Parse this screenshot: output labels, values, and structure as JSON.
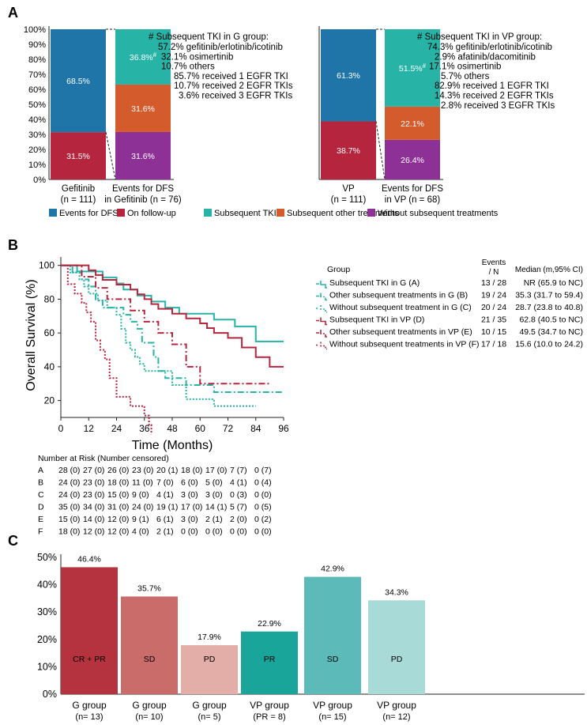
{
  "colors": {
    "blue": "#1f75a8",
    "red": "#b5253e",
    "teal": "#27b3a6",
    "orange": "#d45c2c",
    "purple": "#8e3197",
    "bar_g1": "#b5323f",
    "bar_g2": "#c96c6a",
    "bar_g3": "#e2aea7",
    "bar_v1": "#1aa59b",
    "bar_v2": "#5cbab8",
    "bar_v3": "#a8dad7"
  },
  "panel_a": {
    "label": "A",
    "chart_data": {
      "type": "bar",
      "stacked": true,
      "y_ticks": [
        "0%",
        "10%",
        "20%",
        "30%",
        "40%",
        "50%",
        "60%",
        "70%",
        "80%",
        "90%",
        "100%"
      ],
      "left": {
        "bars": [
          {
            "name": "Gefitinib",
            "sub": "(n = 111)",
            "segments": [
              {
                "key": "red",
                "value": 31.5,
                "label": "31.5%"
              },
              {
                "key": "blue",
                "value": 68.5,
                "label": "68.5%"
              }
            ]
          },
          {
            "name": "Events for DFS",
            "sub": "in Gefitinib (n = 76)",
            "segments": [
              {
                "key": "purple",
                "value": 31.6,
                "label": "31.6%"
              },
              {
                "key": "orange",
                "value": 31.6,
                "label": "31.6%"
              },
              {
                "key": "teal",
                "value": 36.8,
                "label": "36.8%",
                "sup": "#"
              }
            ]
          }
        ],
        "note": {
          "title": "# Subsequent TKI in G group:",
          "lines": [
            "57.2% gefitinib/erlotinib/icotinib",
            "32.1% osimertinib",
            "10.7% others",
            "85.7%  received 1 EGFR TKI",
            "10.7%  received 2 EGFR TKIs",
            "3.6%  received 3 EGFR TKIs"
          ]
        }
      },
      "right": {
        "bars": [
          {
            "name": "VP",
            "sub": "(n = 111)",
            "segments": [
              {
                "key": "red",
                "value": 38.7,
                "label": "38.7%"
              },
              {
                "key": "blue",
                "value": 61.3,
                "label": "61.3%"
              }
            ]
          },
          {
            "name": "Events for DFS",
            "sub": "in VP (n = 68)",
            "segments": [
              {
                "key": "purple",
                "value": 26.4,
                "label": "26.4%"
              },
              {
                "key": "orange",
                "value": 22.1,
                "label": "22.1%"
              },
              {
                "key": "teal",
                "value": 51.5,
                "label": "51.5%",
                "sup": "#"
              }
            ]
          }
        ],
        "note": {
          "title": "# Subsequent TKI in VP group:",
          "lines": [
            "74.3% gefitinib/erlotinib/icotinib",
            "2.9% afatinib/dacomitinib",
            "17.1% osimertinib",
            "5.7% others",
            "82.9% received 1 EGFR TKI",
            "14.3% received 2 EGFR TKIs",
            "2.8% received 3 EGFR TKIs"
          ]
        }
      },
      "legend": [
        {
          "key": "blue",
          "label": "Events for DFS"
        },
        {
          "key": "red",
          "label": "On follow-up"
        },
        {
          "key": "teal",
          "label": "Subsequent TKI"
        },
        {
          "key": "orange",
          "label": "Subsequent other treatments"
        },
        {
          "key": "purple",
          "label": "Without subsequent treatments"
        }
      ]
    }
  },
  "panel_b": {
    "label": "B",
    "chart_data": {
      "type": "line",
      "ylabel": "Overall Survival (%)",
      "xlabel": "Time (Months)",
      "xlim": [
        0,
        96
      ],
      "ylim": [
        10,
        105
      ],
      "x_ticks": [
        0,
        12,
        24,
        36,
        48,
        60,
        72,
        84,
        96
      ],
      "y_ticks": [
        20,
        40,
        60,
        80,
        100
      ],
      "table_header": {
        "group": "Group",
        "events": "Events",
        "n": "/ N",
        "median": "Median (m,95% CI)"
      },
      "series": [
        {
          "id": "A",
          "name": "Subsequent TKI in G (A)",
          "events": "13 / 28",
          "median": "NR (65.9 to NC)",
          "color": "#27b3a6",
          "dash": "solid",
          "x": [
            0,
            7,
            18,
            24,
            27,
            33,
            39,
            45,
            51,
            57,
            66,
            72,
            75,
            81,
            84,
            96
          ],
          "y": [
            100,
            96.4,
            92.9,
            89.3,
            85.7,
            82.1,
            78.6,
            75,
            71.4,
            71.4,
            67.9,
            67.9,
            63.9,
            63.9,
            55,
            55
          ]
        },
        {
          "id": "B",
          "name": "Other subsequent treatments in G (B)",
          "events": "19 / 24",
          "median": "35.3 (31.7 to 59.4)",
          "color": "#27b3a6",
          "dash": "dashdot",
          "x": [
            0,
            5,
            9,
            12,
            15,
            18,
            24,
            27,
            30,
            33,
            35,
            40,
            42,
            45,
            54,
            66,
            96
          ],
          "y": [
            100,
            95.8,
            91.7,
            87.5,
            79.2,
            75,
            75,
            70.8,
            66.7,
            62.5,
            54.2,
            45.8,
            37.5,
            33.3,
            29.2,
            25,
            25
          ]
        },
        {
          "id": "C",
          "name": "Without subsequent treatment in G (C)",
          "events": "20 / 24",
          "median": "28.7 (23.8 to 40.8)",
          "color": "#27b3a6",
          "dash": "dotted",
          "x": [
            0,
            4,
            8,
            10,
            12,
            16,
            20,
            24,
            26,
            28,
            30,
            32,
            34,
            36,
            42,
            48,
            54,
            66,
            84
          ],
          "y": [
            100,
            95.8,
            91.7,
            87.5,
            83.3,
            79.2,
            75,
            70.8,
            62.5,
            54.2,
            50,
            45.8,
            41.7,
            37.5,
            37.5,
            29.2,
            20.8,
            16.7,
            16.7
          ]
        },
        {
          "id": "D",
          "name": "Subsequent TKI in VP (D)",
          "events": "21 / 35",
          "median": "62.8 (40.5 to NC)",
          "color": "#b5253e",
          "dash": "solid",
          "x": [
            0,
            12,
            15,
            18,
            24,
            30,
            33,
            36,
            39,
            42,
            48,
            54,
            60,
            63,
            66,
            72,
            78,
            84,
            90,
            96
          ],
          "y": [
            100,
            97.1,
            94.3,
            91.4,
            88.6,
            85.7,
            82.9,
            80,
            77.1,
            74.3,
            71.4,
            68.6,
            65.7,
            62.9,
            60,
            57.1,
            51.4,
            45.7,
            40,
            40
          ]
        },
        {
          "id": "E",
          "name": "Other subsequent treatments in VP (E)",
          "events": "10 / 15",
          "median": "49.5 (34.7 to NC)",
          "color": "#b5253e",
          "dash": "dashdot",
          "x": [
            0,
            9,
            15,
            20,
            24,
            30,
            36,
            42,
            48,
            54,
            60,
            72,
            84,
            90
          ],
          "y": [
            100,
            93.3,
            86.7,
            80,
            80,
            73.3,
            66.7,
            60,
            53.3,
            40,
            30,
            30,
            30,
            30
          ]
        },
        {
          "id": "F",
          "name": "Without subsequent treatments in VP (F)",
          "events": "17 / 18",
          "median": "15.6 (10.0 to 24.2)",
          "color": "#b5253e",
          "dash": "dotted",
          "x": [
            0,
            3,
            6,
            9,
            11,
            13,
            15,
            17,
            19,
            21,
            24,
            30,
            36,
            38,
            39
          ],
          "y": [
            100,
            88.9,
            83.3,
            77.8,
            72.2,
            66.7,
            55.6,
            50,
            44.4,
            33.3,
            22.2,
            16.7,
            11.1,
            5.6,
            0
          ]
        }
      ],
      "risk_table": {
        "title": "Number at Risk (Number censored)",
        "rows": [
          {
            "label": "A",
            "cells": [
              "28 (0)",
              "27 (0)",
              "26 (0)",
              "23 (0)",
              "20 (1)",
              "18 (0)",
              "17 (0)",
              "7 (7)",
              "0 (7)"
            ]
          },
          {
            "label": "B",
            "cells": [
              "24 (0)",
              "23 (0)",
              "18 (0)",
              "11 (0)",
              "7 (0)",
              "6 (0)",
              "5 (0)",
              "4 (1)",
              "0 (4)"
            ]
          },
          {
            "label": "C",
            "cells": [
              "24 (0)",
              "23 (0)",
              "15 (0)",
              "9 (0)",
              "4 (1)",
              "3 (0)",
              "3 (0)",
              "0 (3)",
              "0 (0)"
            ]
          },
          {
            "label": "D",
            "cells": [
              "35 (0)",
              "34 (0)",
              "31 (0)",
              "24 (0)",
              "19 (1)",
              "17 (0)",
              "14 (1)",
              "5 (7)",
              "0 (5)"
            ]
          },
          {
            "label": "E",
            "cells": [
              "15 (0)",
              "14 (0)",
              "12 (0)",
              "9 (1)",
              "6 (1)",
              "3 (0)",
              "2 (1)",
              "2 (0)",
              "0 (2)"
            ]
          },
          {
            "label": "F",
            "cells": [
              "18 (0)",
              "12 (0)",
              "12 (0)",
              "4 (0)",
              "2 (1)",
              "0 (0)",
              "0 (0)",
              "0 (0)",
              "0 (0)"
            ]
          }
        ]
      }
    }
  },
  "panel_c": {
    "label": "C",
    "chart_data": {
      "type": "bar",
      "ylim": [
        0,
        50
      ],
      "y_ticks": [
        "0%",
        "10%",
        "20%",
        "30%",
        "40%",
        "50%"
      ],
      "bars": [
        {
          "value": 46.4,
          "label": "46.4%",
          "inner": "CR + PR",
          "name": "G group",
          "sub": "(n= 13)",
          "color_key": "bar_g1"
        },
        {
          "value": 35.7,
          "label": "35.7%",
          "inner": "SD",
          "name": "G group",
          "sub": "(n= 10)",
          "color_key": "bar_g2"
        },
        {
          "value": 17.9,
          "label": "17.9%",
          "inner": "PD",
          "name": "G group",
          "sub": "(n= 5)",
          "color_key": "bar_g3"
        },
        {
          "value": 22.9,
          "label": "22.9%",
          "inner": "PR",
          "name": "VP group",
          "sub": "(PR = 8)",
          "color_key": "bar_v1"
        },
        {
          "value": 42.9,
          "label": "42.9%",
          "inner": "SD",
          "name": "VP group",
          "sub": "(n= 15)",
          "color_key": "bar_v2"
        },
        {
          "value": 34.3,
          "label": "34.3%",
          "inner": "PD",
          "name": "VP group",
          "sub": "(n= 12)",
          "color_key": "bar_v3"
        }
      ]
    }
  }
}
